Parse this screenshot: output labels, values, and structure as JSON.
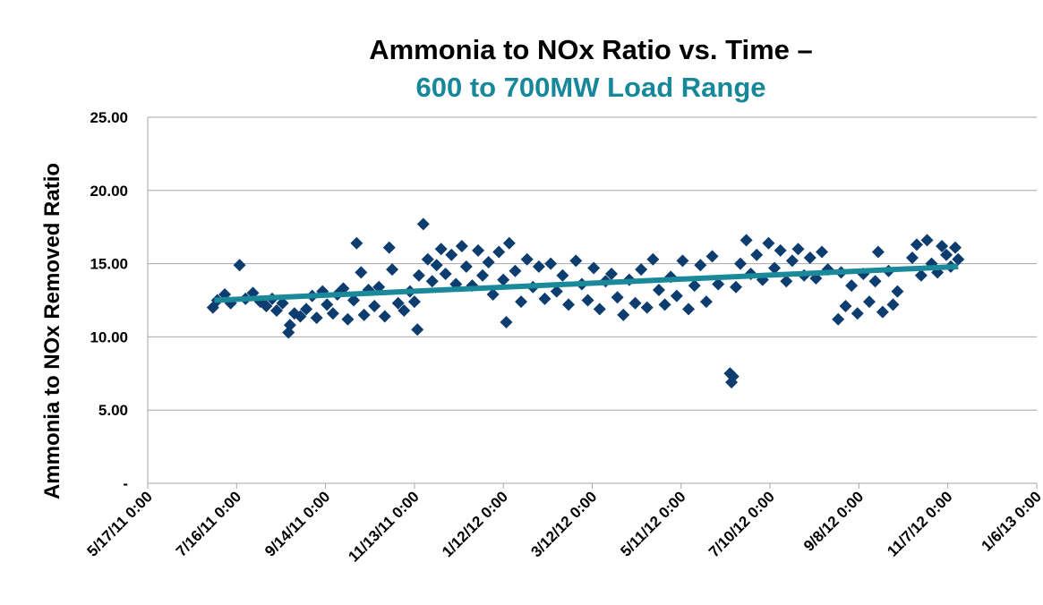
{
  "chart_data": {
    "type": "scatter",
    "title": "Ammonia to NOx Ratio vs. Time –",
    "subtitle": "600 to 700MW Load Range",
    "y_label": "Ammonia to NOx Removed Ratio",
    "color": "#0d3d6e",
    "grid": true,
    "ylim": [
      0,
      25
    ],
    "yticks": [
      {
        "value": 0,
        "label": "-"
      },
      {
        "value": 5,
        "label": "5.00"
      },
      {
        "value": 10,
        "label": "10.00"
      },
      {
        "value": 15,
        "label": "15.00"
      },
      {
        "value": 20,
        "label": "20.00"
      },
      {
        "value": 25,
        "label": "25.00"
      }
    ],
    "xlim": [
      "5/17/11 0:00",
      "1/6/13 0:00"
    ],
    "xticks": [
      "5/17/11 0:00",
      "7/16/11 0:00",
      "9/14/11 0:00",
      "11/13/11 0:00",
      "1/12/12 0:00",
      "3/12/12 0:00",
      "5/11/12 0:00",
      "7/10/12 0:00",
      "9/8/12 0:00",
      "11/7/12 0:00",
      "1/6/13 0:00"
    ],
    "x": [
      "6/30/11 0:00",
      "7/3/11 0:00",
      "7/8/11 0:00",
      "7/12/11 0:00",
      "7/18/11 0:00",
      "7/22/11 0:00",
      "7/27/11 0:00",
      "8/1/11 0:00",
      "8/5/11 0:00",
      "8/9/11 0:00",
      "8/12/11 0:00",
      "8/16/11 0:00",
      "8/20/11 0:00",
      "8/21/11 0:00",
      "8/24/11 0:00",
      "8/28/11 0:00",
      "9/1/11 0:00",
      "9/5/11 0:00",
      "9/8/11 0:00",
      "9/12/11 0:00",
      "9/15/11 0:00",
      "9/19/11 0:00",
      "9/22/11 0:00",
      "9/26/11 0:00",
      "9/29/11 0:00",
      "10/3/11 0:00",
      "10/5/11 0:00",
      "10/8/11 0:00",
      "10/10/11 0:00",
      "10/13/11 0:00",
      "10/17/11 0:00",
      "10/20/11 0:00",
      "10/24/11 0:00",
      "10/27/11 0:00",
      "10/29/11 0:00",
      "11/2/11 0:00",
      "11/6/11 0:00",
      "11/10/11 0:00",
      "11/13/11 0:00",
      "11/15/11 0:00",
      "11/16/11 0:00",
      "11/19/11 0:00",
      "11/22/11 0:00",
      "11/25/11 0:00",
      "11/28/11 0:00",
      "12/1/11 0:00",
      "12/4/11 0:00",
      "12/8/11 0:00",
      "12/11/11 0:00",
      "12/15/11 0:00",
      "12/18/11 0:00",
      "12/22/11 0:00",
      "12/26/11 0:00",
      "12/29/11 0:00",
      "1/2/12 0:00",
      "1/5/12 0:00",
      "1/9/12 0:00",
      "1/12/12 0:00",
      "1/14/12 0:00",
      "1/16/12 0:00",
      "1/20/12 0:00",
      "1/24/12 0:00",
      "1/28/12 0:00",
      "2/1/12 0:00",
      "2/5/12 0:00",
      "2/9/12 0:00",
      "2/13/12 0:00",
      "2/17/12 0:00",
      "2/21/12 0:00",
      "2/25/12 0:00",
      "3/1/12 0:00",
      "3/5/12 0:00",
      "3/9/12 0:00",
      "3/13/12 0:00",
      "3/17/12 0:00",
      "3/21/12 0:00",
      "3/25/12 0:00",
      "3/29/12 0:00",
      "4/2/12 0:00",
      "4/6/12 0:00",
      "4/10/12 0:00",
      "4/14/12 0:00",
      "4/18/12 0:00",
      "4/22/12 0:00",
      "4/26/12 0:00",
      "4/30/12 0:00",
      "5/4/12 0:00",
      "5/8/12 0:00",
      "5/12/12 0:00",
      "5/16/12 0:00",
      "5/20/12 0:00",
      "5/24/12 0:00",
      "5/28/12 0:00",
      "6/1/12 0:00",
      "6/5/12 0:00",
      "6/13/12 0:00",
      "6/14/12 0:00",
      "6/15/12 0:00",
      "6/17/12 0:00",
      "6/20/12 0:00",
      "6/24/12 0:00",
      "6/27/12 0:00",
      "7/1/12 0:00",
      "7/5/12 0:00",
      "7/9/12 0:00",
      "7/13/12 0:00",
      "7/17/12 0:00",
      "7/21/12 0:00",
      "7/25/12 0:00",
      "7/29/12 0:00",
      "8/2/12 0:00",
      "8/6/12 0:00",
      "8/10/12 0:00",
      "8/14/12 0:00",
      "8/18/12 0:00",
      "8/25/12 0:00",
      "8/27/12 0:00",
      "8/30/12 0:00",
      "9/3/12 0:00",
      "9/7/12 0:00",
      "9/11/12 0:00",
      "9/15/12 0:00",
      "9/19/12 0:00",
      "9/21/12 0:00",
      "9/24/12 0:00",
      "9/28/12 0:00",
      "10/1/12 0:00",
      "10/4/12 0:00",
      "10/14/12 0:00",
      "10/17/12 0:00",
      "10/20/12 0:00",
      "10/24/12 0:00",
      "10/27/12 0:00",
      "10/31/12 0:00",
      "11/3/12 0:00",
      "11/6/12 0:00",
      "11/9/12 0:00",
      "11/12/12 0:00",
      "11/14/12 0:00"
    ],
    "values": [
      12.0,
      12.5,
      12.9,
      12.3,
      14.9,
      12.6,
      13.0,
      12.4,
      12.1,
      12.6,
      11.8,
      12.3,
      10.3,
      10.8,
      11.6,
      11.4,
      11.9,
      12.8,
      11.3,
      13.1,
      12.2,
      11.6,
      12.9,
      13.3,
      11.2,
      12.5,
      16.4,
      14.4,
      11.5,
      13.2,
      12.1,
      13.4,
      11.4,
      16.1,
      14.6,
      12.3,
      11.8,
      13.1,
      12.4,
      10.5,
      14.2,
      17.7,
      15.3,
      13.8,
      14.9,
      16.0,
      14.3,
      15.6,
      13.6,
      16.2,
      14.8,
      13.5,
      15.9,
      14.2,
      15.1,
      12.9,
      15.8,
      13.9,
      11.0,
      16.4,
      14.5,
      12.4,
      15.3,
      13.4,
      14.8,
      12.6,
      15.0,
      13.1,
      14.2,
      12.2,
      15.2,
      13.6,
      12.5,
      14.7,
      11.9,
      13.8,
      14.3,
      12.7,
      11.5,
      13.9,
      12.3,
      14.6,
      12.0,
      15.3,
      13.2,
      12.2,
      14.1,
      12.8,
      15.2,
      11.9,
      13.5,
      14.9,
      12.4,
      15.5,
      13.6,
      7.5,
      6.9,
      7.3,
      13.4,
      15.0,
      16.6,
      14.3,
      15.6,
      13.9,
      16.4,
      14.7,
      15.9,
      13.8,
      15.2,
      16.0,
      14.2,
      15.4,
      14.0,
      15.8,
      14.6,
      11.2,
      14.4,
      12.1,
      13.5,
      11.6,
      14.3,
      12.4,
      13.8,
      15.8,
      11.7,
      14.5,
      12.2,
      13.1,
      15.4,
      16.3,
      14.2,
      16.6,
      15.0,
      14.4,
      16.2,
      15.6,
      14.8,
      16.1,
      15.3
    ],
    "trendline": {
      "color": "#1a8a9b",
      "x": [
        "7/1/11 0:00",
        "11/14/12 0:00"
      ],
      "values": [
        12.5,
        14.8
      ]
    }
  }
}
